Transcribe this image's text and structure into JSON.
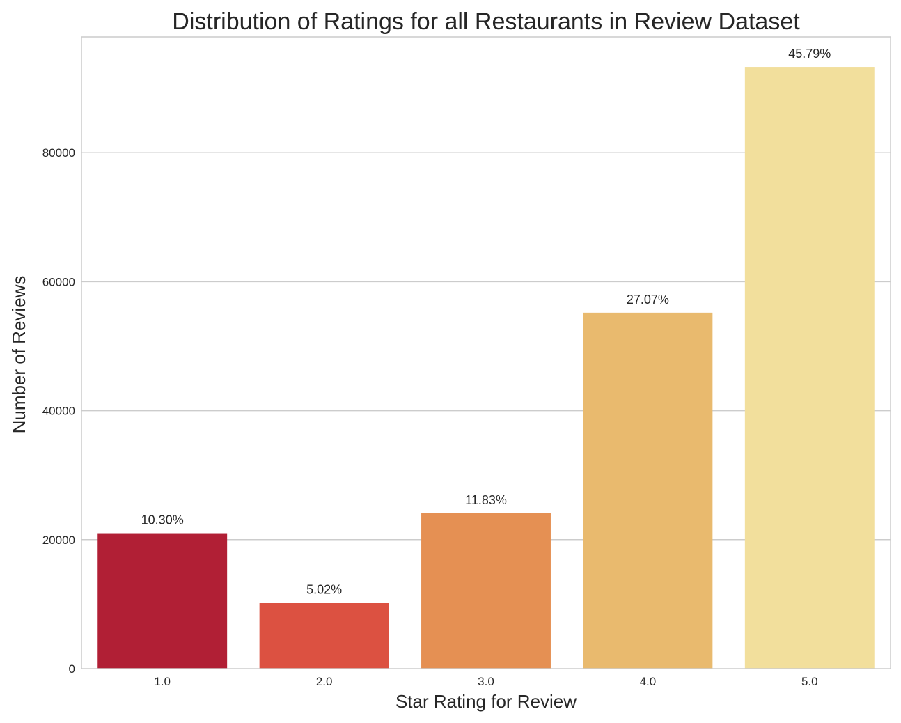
{
  "chart_data": {
    "type": "bar",
    "title": "Distribution of Ratings for all Restaurants in Review Dataset",
    "xlabel": "Star Rating for Review",
    "ylabel": "Number of Reviews",
    "categories": [
      "1.0",
      "2.0",
      "3.0",
      "4.0",
      "5.0"
    ],
    "values": [
      21000,
      10200,
      24100,
      55200,
      93300
    ],
    "data_labels": [
      "10.30%",
      "5.02%",
      "11.83%",
      "27.07%",
      "45.79%"
    ],
    "colors": [
      "#b11f35",
      "#dc5141",
      "#e59053",
      "#e9ba6e",
      "#f2df9c"
    ],
    "ylim": [
      0,
      97950
    ],
    "yticks": [
      0,
      20000,
      40000,
      60000,
      80000
    ],
    "grid": "horizontal",
    "legend": "none"
  }
}
